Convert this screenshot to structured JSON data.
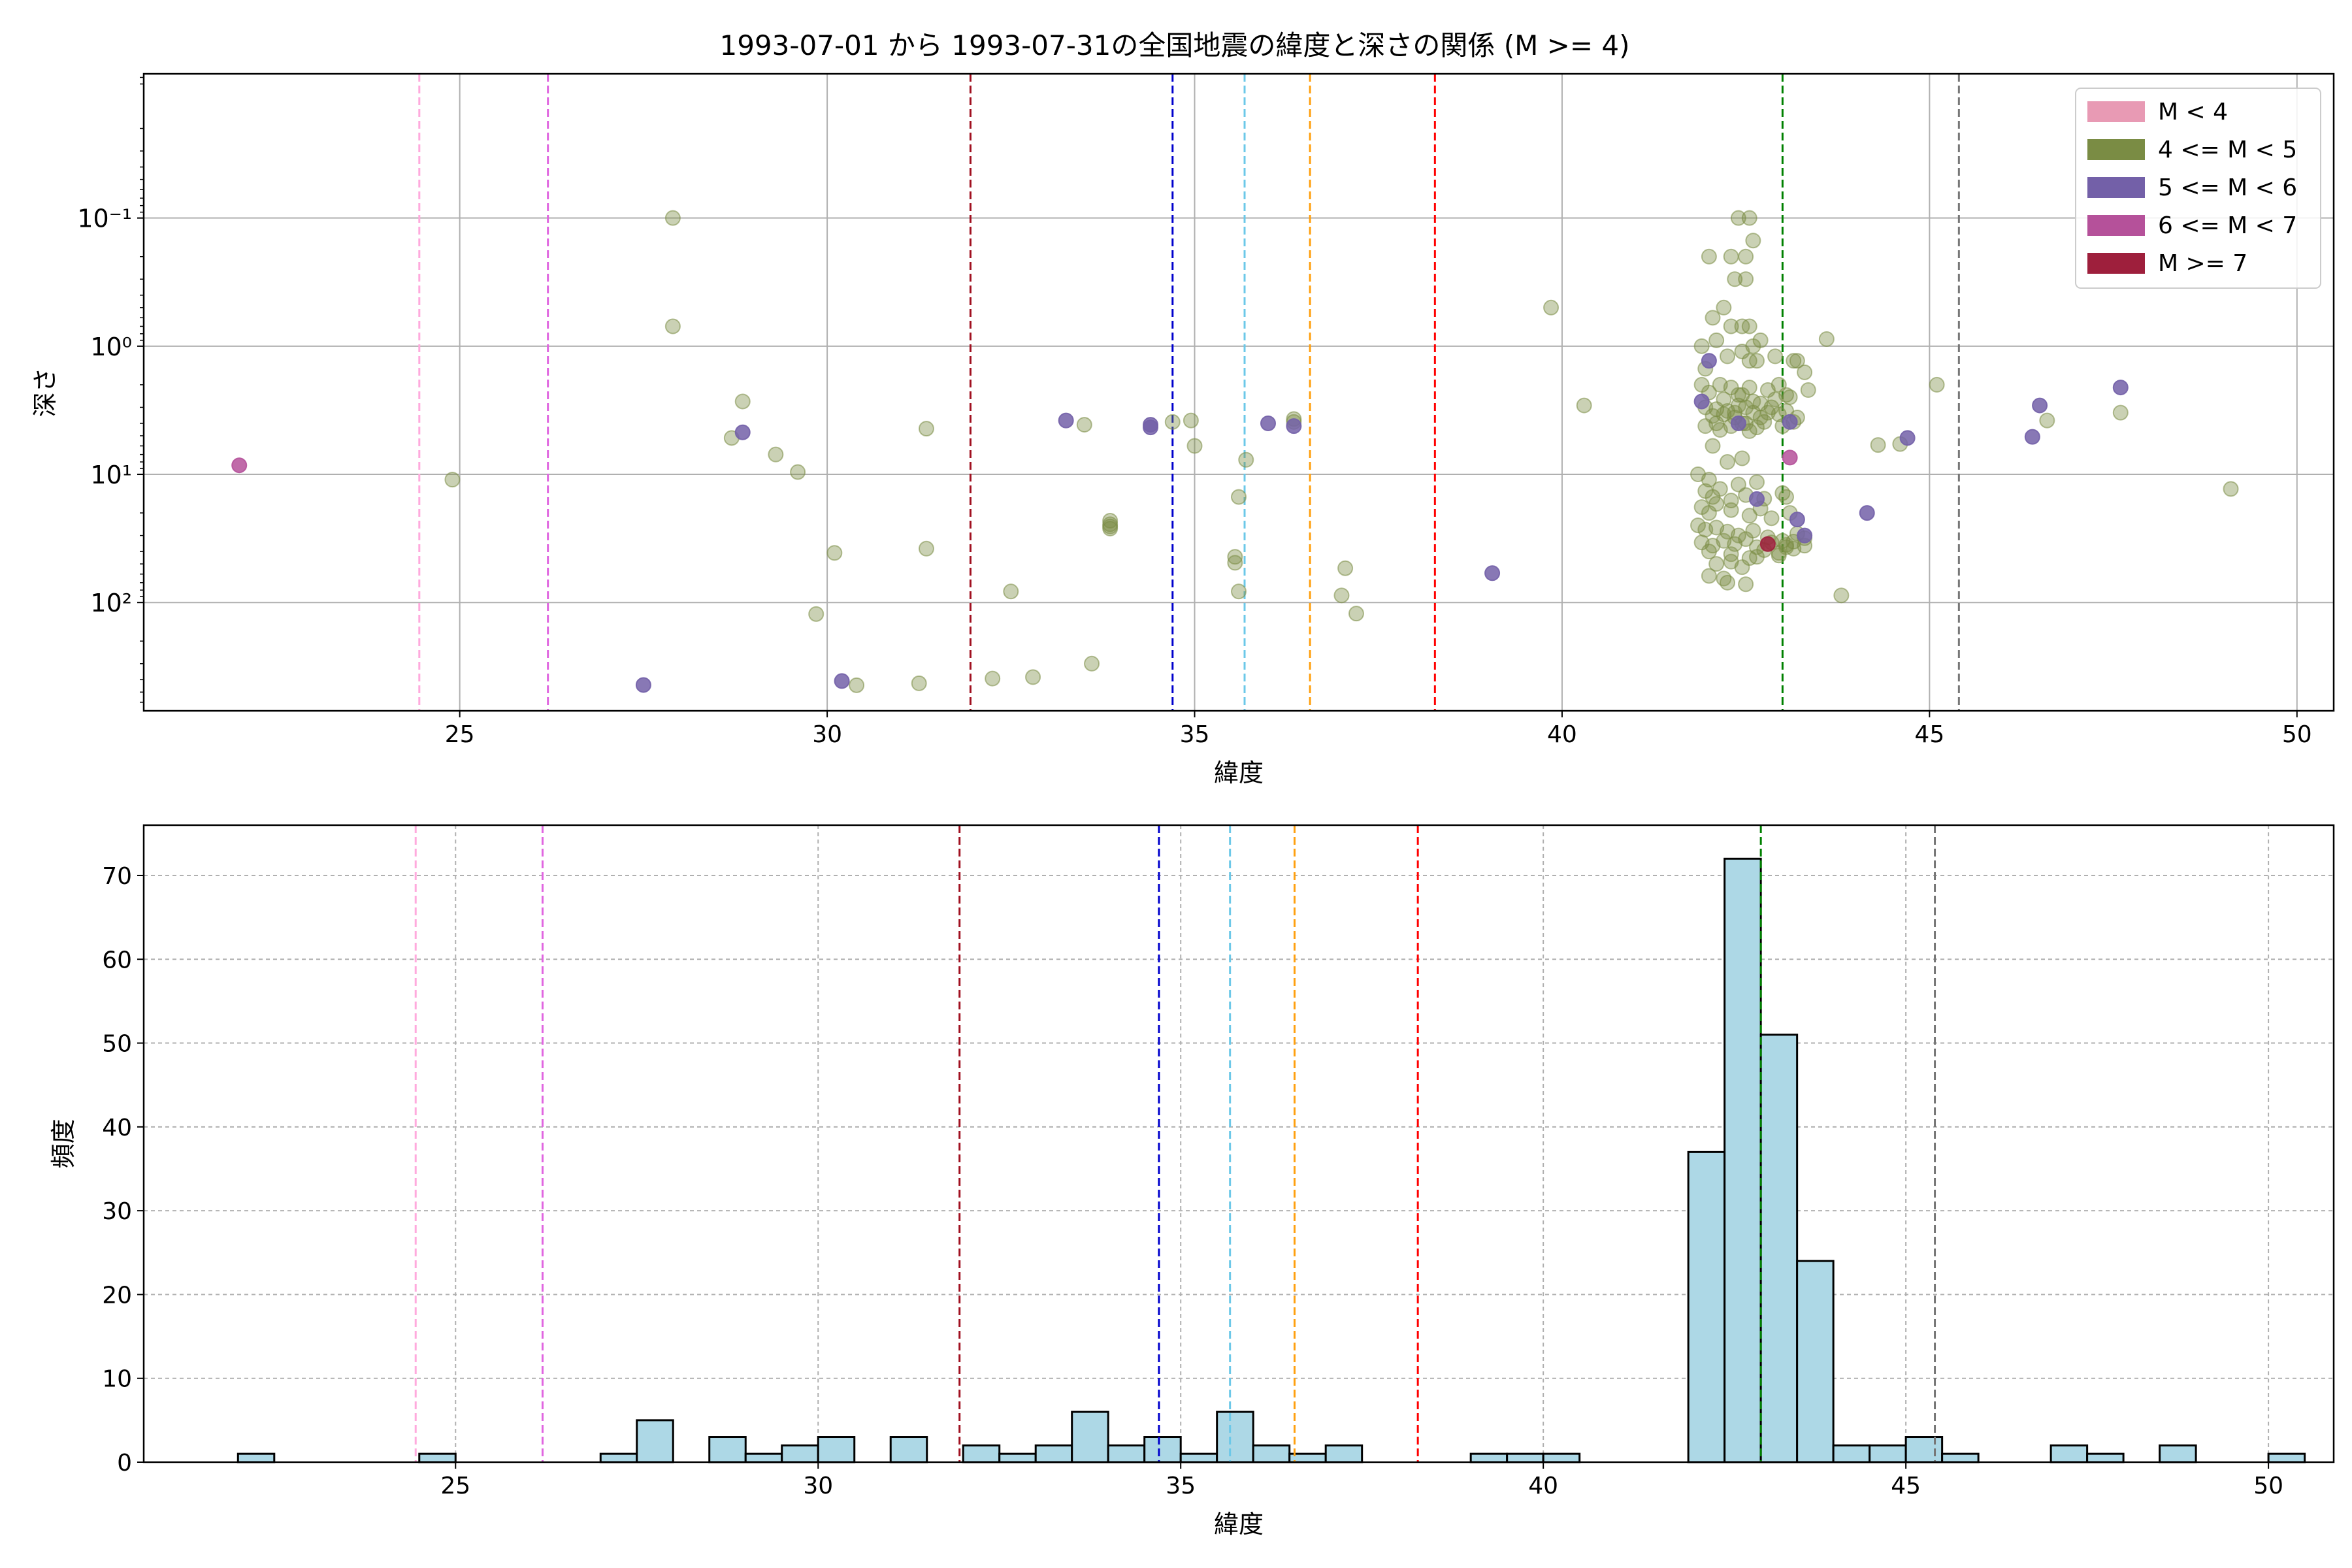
{
  "figure": {
    "title": "1993-07-01 から 1993-07-31の全国地震の緯度と深さの関係 (M >= 4)"
  },
  "chart_data": [
    {
      "type": "scatter",
      "xlabel": "緯度",
      "ylabel": "深さ",
      "xlim": [
        20.7,
        50.5
      ],
      "ylim": [
        700,
        0.0075
      ],
      "yscale": "log",
      "y_inverted": true,
      "grid": true,
      "xticks": [
        25,
        30,
        35,
        40,
        45,
        50
      ],
      "xtick_labels": [
        "25",
        "30",
        "35",
        "40",
        "45",
        "50"
      ],
      "yticks": [
        0.1,
        1,
        10,
        100
      ],
      "ytick_labels": [
        "10⁻¹",
        "10⁰",
        "10¹",
        "10²"
      ],
      "legend": {
        "position": "top-right",
        "entries": [
          {
            "label": "M < 4",
            "color": "#e89ab4"
          },
          {
            "label": "4 <= M < 5",
            "color": "#7a8c44"
          },
          {
            "label": "5 <= M < 6",
            "color": "#7360a8"
          },
          {
            "label": "6 <= M < 7",
            "color": "#b5519a"
          },
          {
            "label": "M >= 7",
            "color": "#9e1f3c"
          }
        ]
      },
      "vlines": [
        {
          "x": 24.45,
          "color": "#ffaadd"
        },
        {
          "x": 26.2,
          "color": "#e066e0"
        },
        {
          "x": 31.95,
          "color": "#a01020"
        },
        {
          "x": 34.7,
          "color": "#0000cc"
        },
        {
          "x": 35.68,
          "color": "#6cc8e8"
        },
        {
          "x": 36.57,
          "color": "#ffa010"
        },
        {
          "x": 38.27,
          "color": "#ff0000"
        },
        {
          "x": 43.0,
          "color": "#008000"
        },
        {
          "x": 45.4,
          "color": "#777777"
        }
      ],
      "series": [
        {
          "name": "4 <= M < 5",
          "points": [
            [
              24.9,
              11
            ],
            [
              27.9,
              0.1
            ],
            [
              27.9,
              0.7
            ],
            [
              28.7,
              5.2
            ],
            [
              28.85,
              2.7
            ],
            [
              29.3,
              7
            ],
            [
              29.6,
              9.6
            ],
            [
              29.85,
              123
            ],
            [
              30.1,
              41
            ],
            [
              30.4,
              442
            ],
            [
              31.25,
              427
            ],
            [
              31.35,
              4.4
            ],
            [
              31.35,
              38
            ],
            [
              32.25,
              392
            ],
            [
              32.5,
              82
            ],
            [
              32.8,
              382
            ],
            [
              33.5,
              4.1
            ],
            [
              33.6,
              300
            ],
            [
              33.85,
              23
            ],
            [
              33.85,
              24.5
            ],
            [
              33.85,
              25.5
            ],
            [
              33.85,
              26.5
            ],
            [
              34.95,
              3.8
            ],
            [
              35.0,
              6
            ],
            [
              34.7,
              3.9
            ],
            [
              35.55,
              44
            ],
            [
              35.55,
              49
            ],
            [
              35.6,
              82
            ],
            [
              35.6,
              15
            ],
            [
              35.7,
              7.7
            ],
            [
              36.35,
              3.9
            ],
            [
              36.35,
              3.7
            ],
            [
              37.0,
              88
            ],
            [
              37.05,
              54
            ],
            [
              37.2,
              122
            ],
            [
              39.85,
              0.5
            ],
            [
              40.3,
              2.9
            ],
            [
              43.6,
              0.88
            ],
            [
              43.8,
              88
            ],
            [
              44.3,
              5.9
            ],
            [
              44.6,
              5.8
            ],
            [
              45.1,
              2.0
            ],
            [
              46.6,
              3.8
            ],
            [
              47.6,
              3.3
            ],
            [
              49.1,
              13
            ],
            [
              42.4,
              0.1
            ],
            [
              42.55,
              0.1
            ],
            [
              42.6,
              0.15
            ],
            [
              42.3,
              0.2
            ],
            [
              42.5,
              0.2
            ],
            [
              42.0,
              0.2
            ],
            [
              42.35,
              0.3
            ],
            [
              42.5,
              0.3
            ],
            [
              42.05,
              0.6
            ],
            [
              42.2,
              0.5
            ],
            [
              42.55,
              0.7
            ],
            [
              42.3,
              0.7
            ],
            [
              42.45,
              0.7
            ],
            [
              41.9,
              1.0
            ],
            [
              42.1,
              0.9
            ],
            [
              42.7,
              0.9
            ],
            [
              42.6,
              1.0
            ],
            [
              41.95,
              1.5
            ],
            [
              42.25,
              1.2
            ],
            [
              42.45,
              1.1
            ],
            [
              42.55,
              1.3
            ],
            [
              42.65,
              1.3
            ],
            [
              42.9,
              1.2
            ],
            [
              43.15,
              1.3
            ],
            [
              43.2,
              1.3
            ],
            [
              43.3,
              1.6
            ],
            [
              41.9,
              2.0
            ],
            [
              42.0,
              2.3
            ],
            [
              42.15,
              2.0
            ],
            [
              42.3,
              2.1
            ],
            [
              42.4,
              2.4
            ],
            [
              42.55,
              2.1
            ],
            [
              42.8,
              2.2
            ],
            [
              42.95,
              2.0
            ],
            [
              43.1,
              2.5
            ],
            [
              43.35,
              2.2
            ],
            [
              41.95,
              3.0
            ],
            [
              42.05,
              3.5
            ],
            [
              42.1,
              4.0
            ],
            [
              42.25,
              3.2
            ],
            [
              42.35,
              3.6
            ],
            [
              42.5,
              3.0
            ],
            [
              42.6,
              3.3
            ],
            [
              42.7,
              2.8
            ],
            [
              42.85,
              3.0
            ],
            [
              42.95,
              3.4
            ],
            [
              43.05,
              3.2
            ],
            [
              43.2,
              3.6
            ],
            [
              41.95,
              4.2
            ],
            [
              42.15,
              4.5
            ],
            [
              42.3,
              4.2
            ],
            [
              42.45,
              4.0
            ],
            [
              42.55,
              4.6
            ],
            [
              42.65,
              4.3
            ],
            [
              42.75,
              3.9
            ],
            [
              43.0,
              4.2
            ],
            [
              43.15,
              3.9
            ],
            [
              42.2,
              2.6
            ],
            [
              42.4,
              2.9
            ],
            [
              42.6,
              2.7
            ],
            [
              42.35,
              3.3
            ],
            [
              42.5,
              4.0
            ],
            [
              42.8,
              3.3
            ],
            [
              42.1,
              3.1
            ],
            [
              42.2,
              3.4
            ],
            [
              42.45,
              2.4
            ],
            [
              42.7,
              3.6
            ],
            [
              42.9,
              2.6
            ],
            [
              43.05,
              2.4
            ],
            [
              42.05,
              6.0
            ],
            [
              42.25,
              8.0
            ],
            [
              42.45,
              7.5
            ],
            [
              41.85,
              10
            ],
            [
              42.0,
              11
            ],
            [
              42.15,
              13
            ],
            [
              42.4,
              12
            ],
            [
              42.65,
              11.5
            ],
            [
              41.95,
              13.5
            ],
            [
              42.05,
              15
            ],
            [
              42.3,
              16
            ],
            [
              42.5,
              14.5
            ],
            [
              42.75,
              15.5
            ],
            [
              43.0,
              14
            ],
            [
              43.05,
              15
            ],
            [
              41.9,
              18
            ],
            [
              42.0,
              20
            ],
            [
              42.1,
              17
            ],
            [
              42.3,
              19
            ],
            [
              42.55,
              21
            ],
            [
              42.7,
              18.5
            ],
            [
              42.85,
              22
            ],
            [
              43.1,
              20
            ],
            [
              41.85,
              25
            ],
            [
              41.95,
              27
            ],
            [
              42.1,
              26
            ],
            [
              42.25,
              28
            ],
            [
              42.4,
              30
            ],
            [
              42.6,
              27.5
            ],
            [
              42.8,
              31
            ],
            [
              43.0,
              33
            ],
            [
              43.2,
              29
            ],
            [
              43.3,
              31.5
            ],
            [
              41.9,
              34
            ],
            [
              42.05,
              36
            ],
            [
              42.2,
              33
            ],
            [
              42.35,
              35
            ],
            [
              42.5,
              32
            ],
            [
              42.65,
              37
            ],
            [
              42.85,
              34
            ],
            [
              43.05,
              35.5
            ],
            [
              43.15,
              33.5
            ],
            [
              42.0,
              40
            ],
            [
              42.3,
              42
            ],
            [
              42.55,
              45
            ],
            [
              42.75,
              39
            ],
            [
              42.95,
              43
            ],
            [
              43.15,
              38
            ],
            [
              43.3,
              36
            ],
            [
              42.1,
              50
            ],
            [
              42.3,
              48
            ],
            [
              42.45,
              53
            ],
            [
              42.65,
              44
            ],
            [
              42.95,
              41
            ],
            [
              42.0,
              62
            ],
            [
              42.25,
              70
            ],
            [
              42.5,
              72
            ],
            [
              42.2,
              65
            ],
            [
              43.05,
              37
            ]
          ]
        },
        {
          "name": "5 <= M < 6",
          "points": [
            [
              27.5,
              440
            ],
            [
              28.85,
              4.7
            ],
            [
              30.2,
              410
            ],
            [
              33.25,
              3.8
            ],
            [
              34.4,
              4.3
            ],
            [
              34.4,
              4.1
            ],
            [
              36.0,
              4.0
            ],
            [
              36.35,
              4.2
            ],
            [
              39.05,
              59
            ],
            [
              42.65,
              15.6
            ],
            [
              44.15,
              20
            ],
            [
              44.7,
              5.2
            ],
            [
              46.4,
              5.1
            ],
            [
              46.5,
              2.9
            ],
            [
              47.6,
              2.1
            ],
            [
              41.9,
              2.7
            ],
            [
              42.0,
              1.3
            ],
            [
              42.4,
              4.0
            ],
            [
              43.1,
              3.9
            ],
            [
              43.2,
              22.5
            ],
            [
              43.3,
              30
            ]
          ]
        },
        {
          "name": "6 <= M < 7",
          "points": [
            [
              22.0,
              8.5
            ],
            [
              43.1,
              7.4
            ]
          ]
        },
        {
          "name": "M >= 7",
          "points": [
            [
              42.8,
              35
            ]
          ]
        }
      ]
    },
    {
      "type": "bar",
      "xlabel": "緯度",
      "ylabel": "頻度",
      "xlim": [
        20.7,
        50.9
      ],
      "ylim": [
        0,
        76
      ],
      "grid": true,
      "xticks": [
        25,
        30,
        35,
        40,
        45,
        50
      ],
      "xtick_labels": [
        "25",
        "30",
        "35",
        "40",
        "45",
        "50"
      ],
      "yticks": [
        0,
        10,
        20,
        30,
        40,
        50,
        60,
        70
      ],
      "ytick_labels": [
        "0",
        "10",
        "20",
        "30",
        "40",
        "50",
        "60",
        "70"
      ],
      "bar_color": "#add8e6",
      "bin_start": 22.0,
      "bin_width": 0.5,
      "values": [
        1,
        0,
        0,
        0,
        0,
        1,
        0,
        0,
        0,
        0,
        1,
        5,
        0,
        3,
        1,
        2,
        3,
        0,
        3,
        0,
        2,
        1,
        2,
        6,
        2,
        3,
        1,
        6,
        2,
        1,
        2,
        0,
        0,
        0,
        1,
        1,
        1,
        0,
        0,
        0,
        37,
        72,
        51,
        24,
        2,
        2,
        3,
        1,
        0,
        0,
        2,
        1,
        0,
        2,
        0,
        0,
        1
      ],
      "vlines": [
        {
          "x": 24.45,
          "color": "#ffaadd"
        },
        {
          "x": 26.2,
          "color": "#e066e0"
        },
        {
          "x": 31.95,
          "color": "#a01020"
        },
        {
          "x": 34.7,
          "color": "#0000cc"
        },
        {
          "x": 35.68,
          "color": "#6cc8e8"
        },
        {
          "x": 36.57,
          "color": "#ffa010"
        },
        {
          "x": 38.27,
          "color": "#ff0000"
        },
        {
          "x": 43.0,
          "color": "#008000"
        },
        {
          "x": 45.4,
          "color": "#777777"
        }
      ]
    }
  ]
}
